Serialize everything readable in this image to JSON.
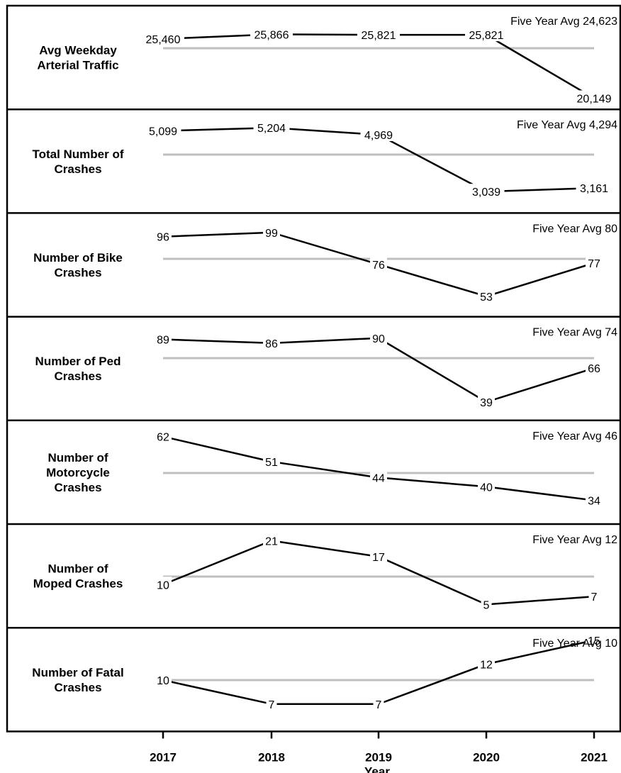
{
  "chart_data": {
    "type": "line",
    "layout": "small-multiples",
    "categories": [
      "2017",
      "2018",
      "2019",
      "2020",
      "2021"
    ],
    "xlabel": "Year",
    "grid": false,
    "legend": "none",
    "colors": {
      "series": "#000000",
      "average": "#bfbfbf",
      "border": "#000000"
    },
    "panels": [
      {
        "name": "Avg Weekday Arterial Traffic",
        "label_lines": [
          "Avg Weekday",
          "Arterial Traffic"
        ],
        "values": [
          25460,
          25866,
          25821,
          25821,
          20149
        ],
        "value_labels": [
          "25,460",
          "25,866",
          "25,821",
          "25,821",
          "20,149"
        ],
        "average": 24623,
        "average_label": "Five Year Avg 24,623"
      },
      {
        "name": "Total Number of Crashes",
        "label_lines": [
          "Total Number of",
          "Crashes"
        ],
        "values": [
          5099,
          5204,
          4969,
          3039,
          3161
        ],
        "value_labels": [
          "5,099",
          "5,204",
          "4,969",
          "3,039",
          "3,161"
        ],
        "average": 4294,
        "average_label": "Five Year Avg 4,294"
      },
      {
        "name": "Number of Bike Crashes",
        "label_lines": [
          "Number of Bike",
          "Crashes"
        ],
        "values": [
          96,
          99,
          76,
          53,
          77
        ],
        "value_labels": [
          "96",
          "99",
          "76",
          "53",
          "77"
        ],
        "average": 80,
        "average_label": "Five Year Avg 80"
      },
      {
        "name": "Number of Ped Crashes",
        "label_lines": [
          "Number of Ped",
          "Crashes"
        ],
        "values": [
          89,
          86,
          90,
          39,
          66
        ],
        "value_labels": [
          "89",
          "86",
          "90",
          "39",
          "66"
        ],
        "average": 74,
        "average_label": "Five Year Avg 74"
      },
      {
        "name": "Number of Motorcycle Crashes",
        "label_lines": [
          "Number of",
          "Motorcycle",
          "Crashes"
        ],
        "values": [
          62,
          51,
          44,
          40,
          34
        ],
        "value_labels": [
          "62",
          "51",
          "44",
          "40",
          "34"
        ],
        "average": 46,
        "average_label": "Five Year Avg 46"
      },
      {
        "name": "Number of Moped Crashes",
        "label_lines": [
          "Number of",
          "Moped Crashes"
        ],
        "values": [
          10,
          21,
          17,
          5,
          7
        ],
        "value_labels": [
          "10",
          "21",
          "17",
          "5",
          "7"
        ],
        "average": 12,
        "average_label": "Five Year Avg 12"
      },
      {
        "name": "Number of Fatal Crashes",
        "label_lines": [
          "Number of Fatal",
          "Crashes"
        ],
        "values": [
          10,
          7,
          7,
          12,
          15
        ],
        "value_labels": [
          "10",
          "7",
          "7",
          "12",
          "15"
        ],
        "average": 10,
        "average_label": "Five Year Avg 10"
      }
    ]
  }
}
